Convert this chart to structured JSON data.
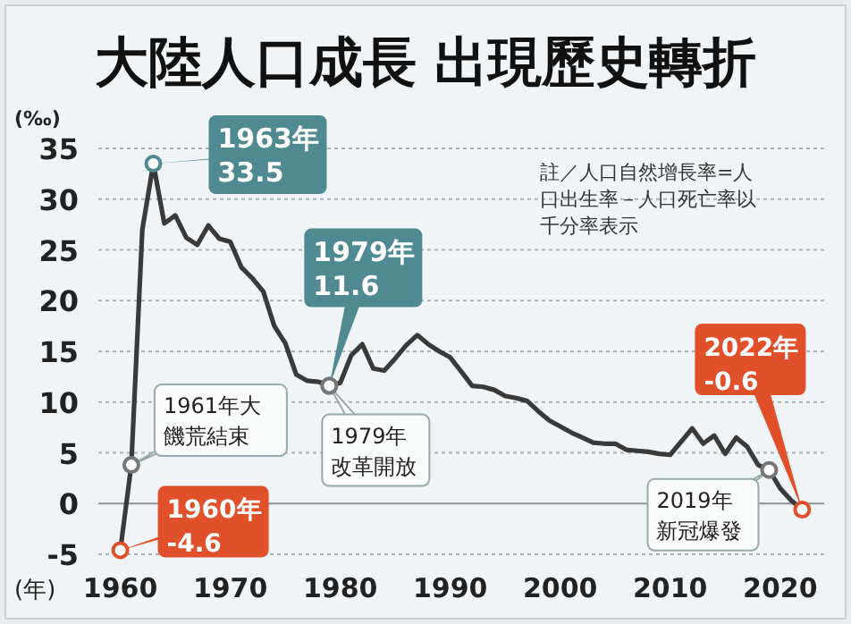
{
  "chart_data": {
    "type": "line",
    "title": "大陸人口成長  出現歷史轉折",
    "xlabel": "(年)",
    "ylabel": "(‰)",
    "x": [
      1960,
      1961,
      1962,
      1963,
      1964,
      1965,
      1966,
      1967,
      1968,
      1969,
      1970,
      1971,
      1972,
      1973,
      1974,
      1975,
      1976,
      1977,
      1978,
      1979,
      1980,
      1981,
      1982,
      1983,
      1984,
      1985,
      1986,
      1987,
      1988,
      1989,
      1990,
      1991,
      1992,
      1993,
      1994,
      1995,
      1996,
      1997,
      1998,
      1999,
      2000,
      2001,
      2002,
      2003,
      2004,
      2005,
      2006,
      2007,
      2008,
      2009,
      2010,
      2011,
      2012,
      2013,
      2014,
      2015,
      2016,
      2017,
      2018,
      2019,
      2020,
      2021,
      2022
    ],
    "series": [
      {
        "color": "#3a3a3a",
        "values": [
          -4.6,
          3.8,
          27,
          33.5,
          27.6,
          28.4,
          26.2,
          25.5,
          27.4,
          26.1,
          25.8,
          23.3,
          22.2,
          20.9,
          17.5,
          15.8,
          12.7,
          12.1,
          12,
          11.6,
          11.9,
          14.6,
          15.7,
          13.3,
          13.1,
          14.3,
          15.6,
          16.6,
          15.7,
          15,
          14.4,
          13,
          11.6,
          11.5,
          11.2,
          10.6,
          10.4,
          10.1,
          9.1,
          8.2,
          7.6,
          7,
          6.5,
          6,
          5.9,
          5.9,
          5.3,
          5.2,
          5.1,
          4.9,
          4.8,
          6.1,
          7.4,
          5.9,
          6.7,
          4.9,
          6.5,
          5.6,
          3.8,
          3.3,
          1.5,
          0.3,
          -0.6
        ]
      }
    ],
    "xlim": [
      1958,
      2024
    ],
    "ylim": [
      -5,
      35
    ],
    "xticks": [
      1960,
      1970,
      1980,
      1990,
      2000,
      2010,
      2020
    ],
    "yticks": [
      -5,
      0,
      5,
      10,
      15,
      20,
      25,
      30,
      35
    ],
    "grid": "y",
    "marker": "none",
    "line_style": "solid",
    "annotations": [
      {
        "text": "1963年\n33.5",
        "x": 1963,
        "y": 33.5
      },
      {
        "text": "1979年\n11.6",
        "x": 1979,
        "y": 11.6
      },
      {
        "text": "1961年大饑荒結束",
        "x": 1961,
        "y": 3.8
      },
      {
        "text": "1979年改革開放",
        "x": 1979,
        "y": 11.6
      },
      {
        "text": "1960年\n-4.6",
        "x": 1960,
        "y": -4.6
      },
      {
        "text": "2019年新冠爆發",
        "x": 2019,
        "y": 3.3
      },
      {
        "text": "2022年\n-0.6",
        "x": 2022,
        "y": -0.6
      },
      "註／人口自然增長率=人口出生率－人口死亡率以千分率表示"
    ]
  }
}
